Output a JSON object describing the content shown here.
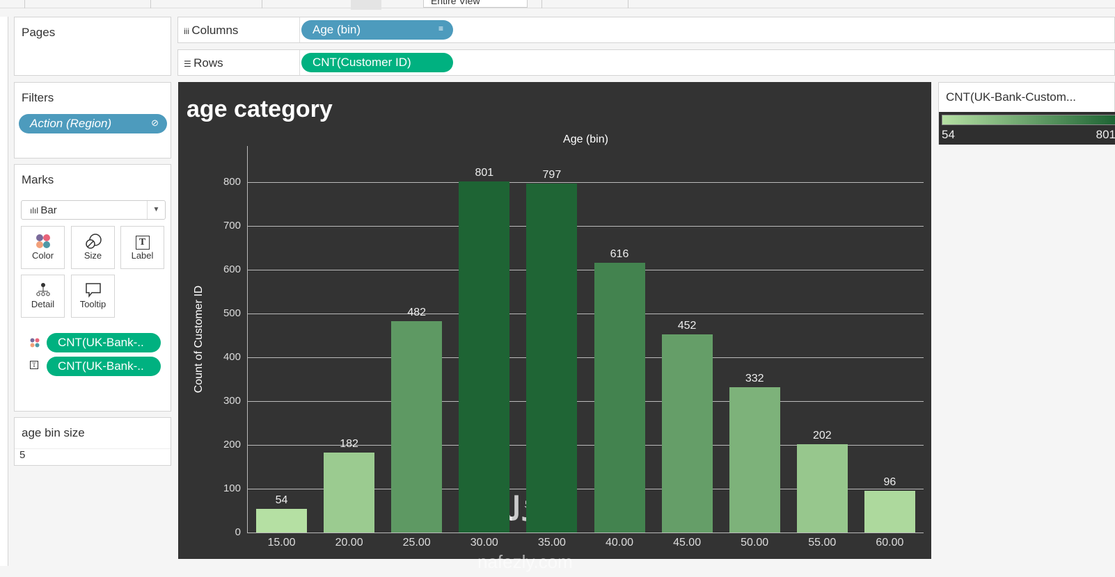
{
  "toolbar": {
    "fit_dropdown": "Entire View"
  },
  "pages": {
    "title": "Pages"
  },
  "filters": {
    "title": "Filters",
    "items": [
      "Action (Region)"
    ]
  },
  "marks": {
    "title": "Marks",
    "type": "Bar",
    "buttons": [
      "Color",
      "Size",
      "Label",
      "Detail",
      "Tooltip"
    ],
    "fields": [
      {
        "icon": "color-icon",
        "label": "CNT(UK-Bank-.."
      },
      {
        "icon": "label-icon",
        "label": "CNT(UK-Bank-.."
      }
    ]
  },
  "parameter": {
    "title": "age bin size",
    "value": "5"
  },
  "columns": {
    "label": "Columns",
    "pill": "Age (bin)"
  },
  "rows": {
    "label": "Rows",
    "pill": "CNT(Customer ID)"
  },
  "legend": {
    "title": "CNT(UK-Bank-Custom...",
    "min": "54",
    "max": "801",
    "color_low": "#b5e0a3",
    "color_high": "#1e6434"
  },
  "watermark": {
    "text": "نفذلي",
    "url": "nafezly.com"
  },
  "chart_data": {
    "type": "bar",
    "title": "age category",
    "xlabel": "Age (bin)",
    "ylabel": "Count of Customer ID",
    "categories": [
      "15.00",
      "20.00",
      "25.00",
      "30.00",
      "35.00",
      "40.00",
      "45.00",
      "50.00",
      "55.00",
      "60.00"
    ],
    "values": [
      54,
      182,
      482,
      801,
      797,
      616,
      452,
      332,
      202,
      96
    ],
    "yticks": [
      "0",
      "100",
      "200",
      "300",
      "400",
      "500",
      "600",
      "700",
      "800"
    ],
    "ylim": [
      0,
      850
    ],
    "grid": true
  }
}
